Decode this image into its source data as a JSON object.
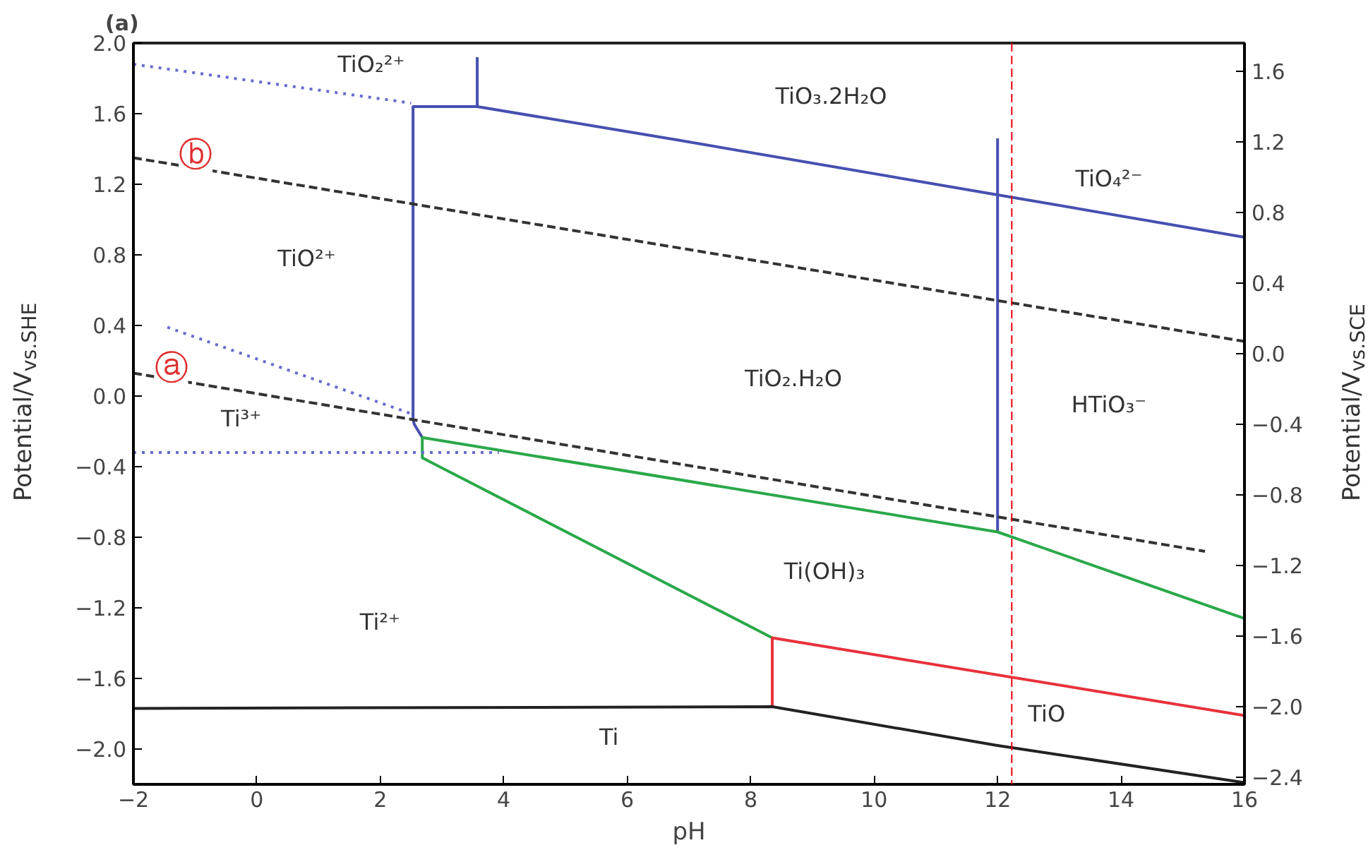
{
  "chart_data": {
    "type": "line",
    "title": "(a)",
    "xlabel": "pH",
    "ylabel": "Potential/V$_{vs.SHE}$",
    "y2label": "Potential/V$_{vs.SCE}$",
    "xlim": [
      -2,
      16
    ],
    "xticks": [
      -2,
      0,
      2,
      4,
      6,
      8,
      10,
      12,
      14,
      16
    ],
    "ylim": [
      -2.2,
      2.0
    ],
    "yticks": [
      {
        "value": -2.0,
        "label": "−2.0"
      },
      {
        "value": -1.6,
        "label": "−1.6"
      },
      {
        "value": -1.2,
        "label": "−1.2"
      },
      {
        "value": -0.8,
        "label": "−0.8"
      },
      {
        "value": -0.4,
        "label": "−0.4"
      },
      {
        "value": 0,
        "label": "0.0"
      },
      {
        "value": 0.4,
        "label": "0.4"
      },
      {
        "value": 0.8,
        "label": "0.8"
      },
      {
        "value": 1.2,
        "label": "1.2"
      },
      {
        "value": 1.6,
        "label": "1.6"
      },
      {
        "value": 2.0,
        "label": "2.0"
      }
    ],
    "y2lim": [
      -2.44,
      1.76
    ],
    "y2ticks": [
      {
        "value": -2.4,
        "label": "−2.4"
      },
      {
        "value": -2.0,
        "label": "−2.0"
      },
      {
        "value": -1.6,
        "label": "−1.6"
      },
      {
        "value": -1.2,
        "label": "−1.2"
      },
      {
        "value": -0.8,
        "label": "−0.8"
      },
      {
        "value": -0.4,
        "label": "−0.4"
      },
      {
        "value": 0,
        "label": "0.0"
      },
      {
        "value": 0.4,
        "label": "0.4"
      },
      {
        "value": 0.8,
        "label": "0.8"
      },
      {
        "value": 1.2,
        "label": "1.2"
      },
      {
        "value": 1.6,
        "label": "1.6"
      }
    ],
    "grid": false,
    "series": [
      {
        "color": "#4650b0",
        "line_style": "solid",
        "x": [
          2.68,
          2.55,
          2.53,
          2.53,
          3.57,
          6.83,
          12.0,
          16
        ],
        "values": [
          -0.235,
          -0.16,
          -0.13,
          1.64,
          1.64,
          1.45,
          1.14,
          0.9
        ]
      },
      {
        "color": "#4650b0",
        "line_style": "solid",
        "x": [
          3.57,
          3.57
        ],
        "values": [
          1.64,
          1.92
        ]
      },
      {
        "color": "#4650b0",
        "line_style": "solid",
        "x": [
          12.0,
          12.0
        ],
        "values": [
          1.46,
          -0.77
        ]
      },
      {
        "color": "#2aa84a",
        "line_style": "solid",
        "x": [
          16,
          12.0,
          2.68,
          2.68,
          8.35
        ],
        "values": [
          -1.26,
          -0.77,
          -0.235,
          -0.35,
          -1.37
        ]
      },
      {
        "color": "#e8323c",
        "line_style": "solid",
        "x": [
          8.35,
          8.35,
          16
        ],
        "values": [
          -1.76,
          -1.37,
          -1.81
        ]
      },
      {
        "color": "#222222",
        "line_style": "solid",
        "x": [
          -2,
          8.35,
          12,
          16
        ],
        "values": [
          -1.77,
          -1.76,
          -1.98,
          -2.19
        ]
      },
      {
        "color": "#6a6ad0",
        "line_style": "dotted",
        "x": [
          -2,
          2.5
        ],
        "values": [
          1.88,
          1.66
        ]
      },
      {
        "color": "#6a6ad0",
        "line_style": "dotted",
        "x": [
          -1.45,
          2.5
        ],
        "values": [
          0.39,
          -0.1
        ]
      },
      {
        "color": "#6a6ad0",
        "line_style": "dotted",
        "x": [
          -2,
          3.92
        ],
        "values": [
          -0.32,
          -0.32
        ]
      },
      {
        "color": "#333333",
        "line_style": "dashed",
        "x": [
          -2,
          16
        ],
        "values": [
          1.35,
          0.31
        ]
      },
      {
        "color": "#333333",
        "line_style": "dashed",
        "x": [
          -2,
          15.36
        ],
        "values": [
          0.13,
          -0.88
        ]
      }
    ],
    "ref_lines": [
      {
        "axis": "x",
        "value": 12.23,
        "color": "#e8000c",
        "line_style": "dashed"
      }
    ],
    "annotations": [
      "TiO₂²⁺",
      "TiO₃.2H₂O",
      "TiO₄²⁻",
      "TiO²⁺",
      "TiO₂.H₂O",
      "HTiO₃⁻",
      "Ti³⁺",
      "Ti(OH)₃",
      "Ti²⁺",
      "Ti",
      "TiO",
      "ⓑ",
      "ⓐ"
    ]
  }
}
